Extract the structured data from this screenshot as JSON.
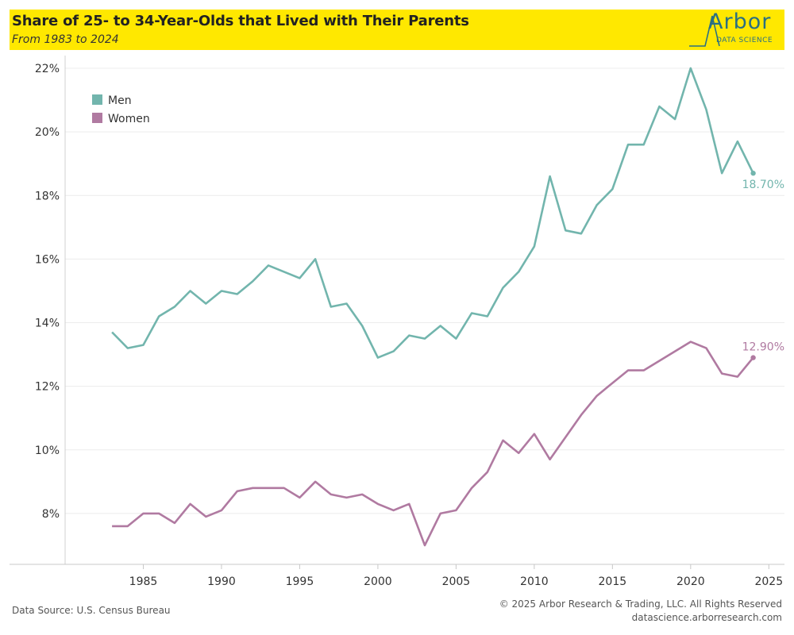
{
  "header": {
    "title": "Share of 25- to 34-Year-Olds that Lived with Their Parents",
    "subtitle": "From 1983 to 2024",
    "logo_text": "Arbor",
    "logo_subtext": "DATA SCIENCE"
  },
  "footer": {
    "source": "Data Source: U.S. Census Bureau",
    "copyright": "© 2025 Arbor Research & Trading, LLC. All Rights Reserved",
    "url": "datascience.arborresearch.com"
  },
  "colors": {
    "header_bg": "#ffe800",
    "men": "#72b5ad",
    "women": "#b07aa1"
  },
  "chart_data": {
    "type": "line",
    "title": "Share of 25- to 34-Year-Olds that Lived with Their Parents",
    "subtitle": "From 1983 to 2024",
    "xlabel": "",
    "ylabel": "",
    "xlim": [
      1980,
      2026
    ],
    "ylim": [
      6.4,
      22.4
    ],
    "x_ticks": [
      1985,
      1990,
      1995,
      2000,
      2005,
      2010,
      2015,
      2020,
      2025
    ],
    "y_ticks": [
      8,
      10,
      12,
      14,
      16,
      18,
      20,
      22
    ],
    "y_tick_format": "percent",
    "grid": "horizontal",
    "legend_position": "top-left",
    "x": [
      1983,
      1984,
      1985,
      1986,
      1987,
      1988,
      1989,
      1990,
      1991,
      1992,
      1993,
      1994,
      1995,
      1996,
      1997,
      1998,
      1999,
      2000,
      2001,
      2002,
      2003,
      2004,
      2005,
      2006,
      2007,
      2008,
      2009,
      2010,
      2011,
      2012,
      2013,
      2014,
      2015,
      2016,
      2017,
      2018,
      2019,
      2020,
      2021,
      2022,
      2023,
      2024
    ],
    "series": [
      {
        "name": "Men",
        "color": "#72b5ad",
        "end_label": "18.70%",
        "values": [
          13.7,
          13.2,
          13.3,
          14.2,
          14.5,
          15.0,
          14.6,
          15.0,
          14.9,
          15.3,
          15.8,
          15.6,
          15.4,
          16.0,
          14.5,
          14.6,
          13.9,
          12.9,
          13.1,
          13.6,
          13.5,
          13.9,
          13.5,
          14.3,
          14.2,
          15.1,
          15.6,
          16.4,
          18.6,
          16.9,
          16.8,
          17.7,
          18.2,
          19.6,
          19.6,
          20.8,
          20.4,
          22.0,
          20.7,
          18.7,
          19.7,
          18.7
        ]
      },
      {
        "name": "Women",
        "color": "#b07aa1",
        "end_label": "12.90%",
        "values": [
          7.6,
          7.6,
          8.0,
          8.0,
          7.7,
          8.3,
          7.9,
          8.1,
          8.7,
          8.8,
          8.8,
          8.8,
          8.5,
          9.0,
          8.6,
          8.5,
          8.6,
          8.3,
          8.1,
          8.3,
          7.0,
          8.0,
          8.1,
          8.8,
          9.3,
          10.3,
          9.9,
          10.5,
          9.7,
          10.4,
          11.1,
          11.7,
          12.1,
          12.5,
          12.5,
          12.8,
          13.1,
          13.4,
          13.2,
          12.4,
          12.3,
          12.9
        ]
      }
    ]
  }
}
